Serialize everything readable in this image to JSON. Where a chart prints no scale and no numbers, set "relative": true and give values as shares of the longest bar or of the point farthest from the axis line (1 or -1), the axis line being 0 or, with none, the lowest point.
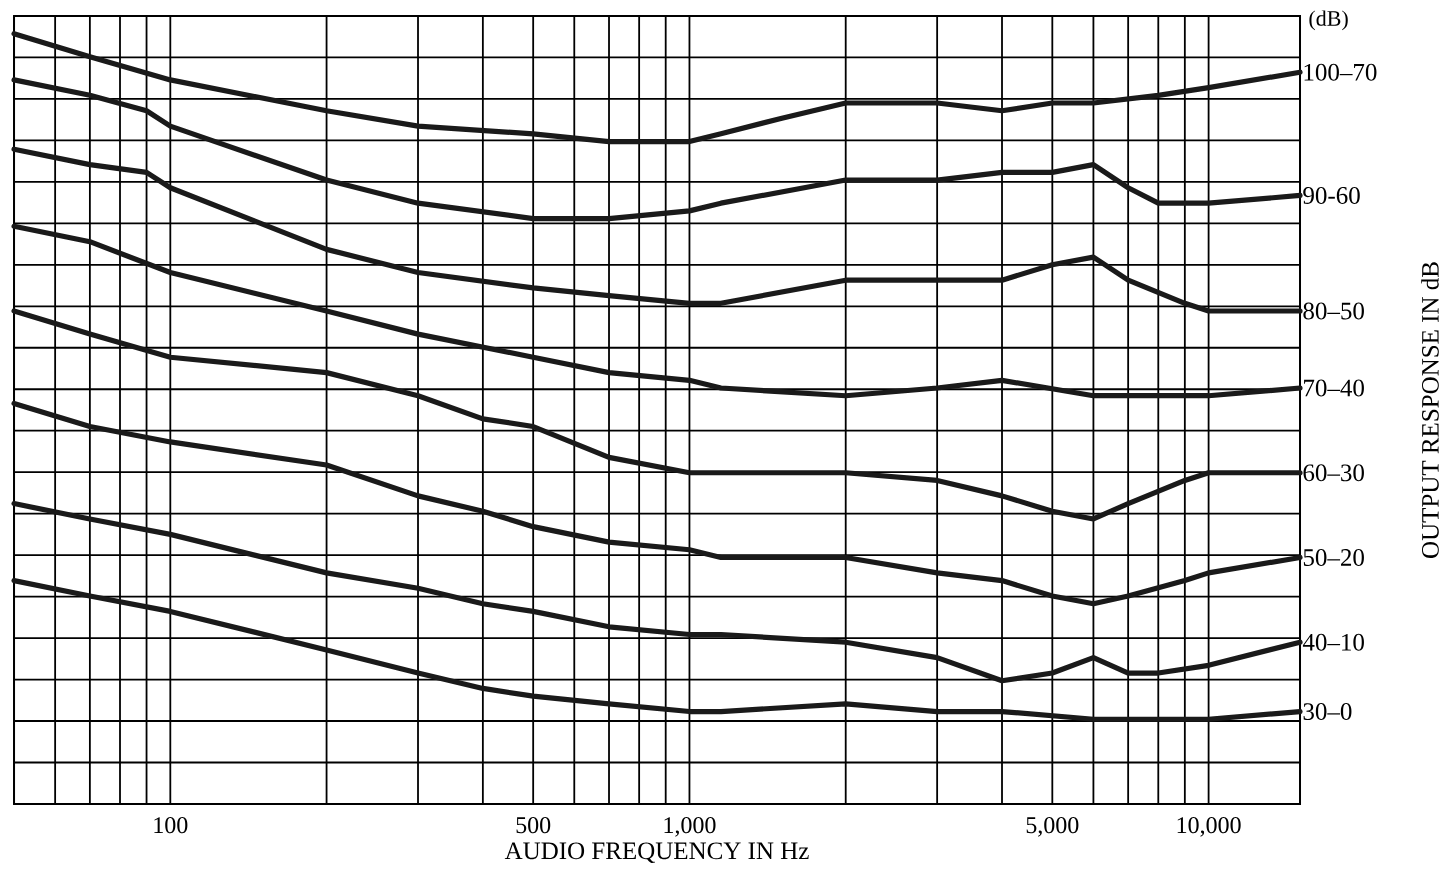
{
  "chart_data": {
    "type": "line",
    "xlabel": "AUDIO FREQUENCY IN Hz",
    "ylabel": "OUTPUT RESPONSE IN dB",
    "annotations": [
      "(dB)"
    ],
    "relative": true,
    "log": "x",
    "grid": true,
    "line_style": "solid",
    "xlim": [
      50,
      15000
    ],
    "xticks": [
      100,
      500,
      {
        "value": 1000,
        "label": "1,000"
      },
      {
        "value": 5000,
        "label": "5,000"
      },
      {
        "value": 10000,
        "label": "10,000"
      }
    ],
    "series": [
      {
        "name": "100–70",
        "color": "#1a1a1a",
        "x": [
          50,
          70,
          100,
          200,
          300,
          500,
          700,
          1000,
          1150,
          1500,
          2000,
          3000,
          4000,
          5000,
          6000,
          8000,
          10000,
          15000
        ],
        "values": [
          1.0,
          0.97,
          0.94,
          0.9,
          0.88,
          0.87,
          0.86,
          0.86,
          0.87,
          0.89,
          0.91,
          0.91,
          0.9,
          0.91,
          0.91,
          0.92,
          0.93,
          0.95
        ]
      },
      {
        "name": "90-60",
        "color": "#1a1a1a",
        "x": [
          50,
          70,
          90,
          100,
          200,
          300,
          500,
          700,
          1000,
          1150,
          2000,
          3000,
          4000,
          5000,
          6000,
          7000,
          8000,
          10000,
          15000
        ],
        "values": [
          0.94,
          0.92,
          0.9,
          0.88,
          0.81,
          0.78,
          0.76,
          0.76,
          0.77,
          0.78,
          0.81,
          0.81,
          0.82,
          0.82,
          0.83,
          0.8,
          0.78,
          0.78,
          0.79
        ]
      },
      {
        "name": "80–50",
        "color": "#1a1a1a",
        "x": [
          50,
          70,
          90,
          100,
          200,
          300,
          500,
          700,
          1000,
          1150,
          2000,
          3000,
          4000,
          5000,
          6000,
          7000,
          9000,
          10000,
          15000
        ],
        "values": [
          0.85,
          0.83,
          0.82,
          0.8,
          0.72,
          0.69,
          0.67,
          0.66,
          0.65,
          0.65,
          0.68,
          0.68,
          0.68,
          0.7,
          0.71,
          0.68,
          0.65,
          0.64,
          0.64
        ]
      },
      {
        "name": "70–40",
        "color": "#1a1a1a",
        "x": [
          50,
          70,
          100,
          200,
          300,
          500,
          700,
          1000,
          1150,
          2000,
          3000,
          4000,
          6000,
          7000,
          10000,
          15000
        ],
        "values": [
          0.75,
          0.73,
          0.69,
          0.64,
          0.61,
          0.58,
          0.56,
          0.55,
          0.54,
          0.53,
          0.54,
          0.55,
          0.53,
          0.53,
          0.53,
          0.54
        ]
      },
      {
        "name": "60–30",
        "color": "#1a1a1a",
        "x": [
          50,
          70,
          100,
          200,
          300,
          400,
          500,
          700,
          1000,
          1150,
          2000,
          3000,
          4000,
          5000,
          6000,
          7000,
          9000,
          10000,
          15000
        ],
        "values": [
          0.64,
          0.61,
          0.58,
          0.56,
          0.53,
          0.5,
          0.49,
          0.45,
          0.43,
          0.43,
          0.43,
          0.42,
          0.4,
          0.38,
          0.37,
          0.39,
          0.42,
          0.43,
          0.43
        ]
      },
      {
        "name": "50–20",
        "color": "#1a1a1a",
        "x": [
          50,
          70,
          100,
          200,
          300,
          400,
          500,
          700,
          1000,
          1150,
          2000,
          3000,
          4000,
          5000,
          6000,
          7000,
          9000,
          10000,
          15000
        ],
        "values": [
          0.52,
          0.49,
          0.47,
          0.44,
          0.4,
          0.38,
          0.36,
          0.34,
          0.33,
          0.32,
          0.32,
          0.3,
          0.29,
          0.27,
          0.26,
          0.27,
          0.29,
          0.3,
          0.32
        ]
      },
      {
        "name": "40–10",
        "color": "#1a1a1a",
        "x": [
          50,
          70,
          100,
          200,
          300,
          400,
          500,
          700,
          1000,
          1150,
          2000,
          3000,
          4000,
          5000,
          6000,
          7000,
          8000,
          10000,
          15000
        ],
        "values": [
          0.39,
          0.37,
          0.35,
          0.3,
          0.28,
          0.26,
          0.25,
          0.23,
          0.22,
          0.22,
          0.21,
          0.19,
          0.16,
          0.17,
          0.19,
          0.17,
          0.17,
          0.18,
          0.21
        ]
      },
      {
        "name": "30–0",
        "color": "#1a1a1a",
        "x": [
          50,
          70,
          100,
          200,
          300,
          400,
          500,
          700,
          1000,
          1150,
          2000,
          3000,
          4000,
          6000,
          8000,
          10000,
          15000
        ],
        "values": [
          0.29,
          0.27,
          0.25,
          0.2,
          0.17,
          0.15,
          0.14,
          0.13,
          0.12,
          0.12,
          0.13,
          0.12,
          0.12,
          0.11,
          0.11,
          0.11,
          0.12
        ]
      }
    ]
  }
}
